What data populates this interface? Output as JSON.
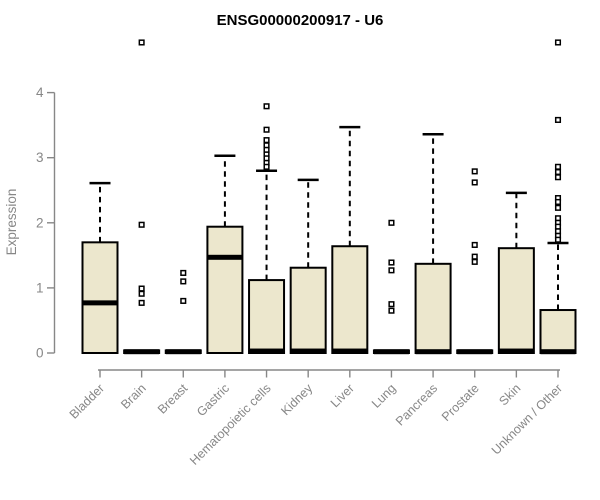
{
  "chart_data": {
    "type": "boxplot",
    "title": "ENSG00000200917 - U6",
    "ylabel": "Expression",
    "xlabel": "",
    "ylim": [
      0,
      4
    ],
    "yticks": [
      0,
      1,
      2,
      3,
      4
    ],
    "grid": false,
    "legend": false,
    "categories": [
      "Bladder",
      "Brain",
      "Breast",
      "Gastric",
      "Hematopoietic cells",
      "Kidney",
      "Liver",
      "Lung",
      "Pancreas",
      "Prostate",
      "Skin",
      "Unknown / Other"
    ],
    "series": [
      {
        "category": "Bladder",
        "whisker_low": 0,
        "q1": 0,
        "median": 0.77,
        "q3": 1.7,
        "whisker_high": 2.61,
        "outliers": []
      },
      {
        "category": "Brain",
        "whisker_low": 0,
        "q1": 0,
        "median": 0.02,
        "q3": 0.04,
        "whisker_high": 0.04,
        "outliers": [
          4.77,
          1.97,
          0.99,
          0.91,
          0.77
        ]
      },
      {
        "category": "Breast",
        "whisker_low": 0,
        "q1": 0,
        "median": 0.02,
        "q3": 0.04,
        "whisker_high": 0.04,
        "outliers": [
          1.23,
          1.1,
          0.8
        ]
      },
      {
        "category": "Gastric",
        "whisker_low": 0,
        "q1": 0,
        "median": 1.47,
        "q3": 1.94,
        "whisker_high": 3.03,
        "outliers": []
      },
      {
        "category": "Hematopoietic cells",
        "whisker_low": 0,
        "q1": 0,
        "median": 0.03,
        "q3": 1.12,
        "whisker_high": 2.8,
        "outliers": [
          3.79,
          3.43,
          3.27,
          3.19,
          3.12,
          3.05,
          2.99,
          2.92,
          2.86
        ]
      },
      {
        "category": "Kidney",
        "whisker_low": 0,
        "q1": 0,
        "median": 0.03,
        "q3": 1.31,
        "whisker_high": 2.66,
        "outliers": []
      },
      {
        "category": "Liver",
        "whisker_low": 0,
        "q1": 0,
        "median": 0.03,
        "q3": 1.64,
        "whisker_high": 3.47,
        "outliers": []
      },
      {
        "category": "Lung",
        "whisker_low": 0,
        "q1": 0,
        "median": 0.02,
        "q3": 0.04,
        "whisker_high": 0.04,
        "outliers": [
          2.0,
          1.39,
          1.27,
          0.75,
          0.65
        ]
      },
      {
        "category": "Pancreas",
        "whisker_low": 0,
        "q1": 0,
        "median": 0.02,
        "q3": 1.37,
        "whisker_high": 3.36,
        "outliers": []
      },
      {
        "category": "Prostate",
        "whisker_low": 0,
        "q1": 0,
        "median": 0.02,
        "q3": 0.04,
        "whisker_high": 0.04,
        "outliers": [
          2.79,
          2.62,
          1.66,
          1.48,
          1.4
        ]
      },
      {
        "category": "Skin",
        "whisker_low": 0,
        "q1": 0,
        "median": 0.03,
        "q3": 1.61,
        "whisker_high": 2.46,
        "outliers": []
      },
      {
        "category": "Unknown / Other",
        "whisker_low": 0,
        "q1": 0,
        "median": 0.02,
        "q3": 0.66,
        "whisker_high": 1.69,
        "outliers": [
          4.77,
          3.58,
          2.86,
          2.78,
          2.7,
          2.38,
          2.32,
          2.23,
          2.07,
          2.0,
          1.94,
          1.87,
          1.8,
          1.74
        ]
      }
    ],
    "colors": {
      "box_fill": "#ECE7CD",
      "box_stroke": "#000000",
      "median": "#000000",
      "whisker": "#000000",
      "outlier_stroke": "#000000",
      "axis": "#878787",
      "title": "#000000",
      "background": "#FFFFFF"
    }
  }
}
